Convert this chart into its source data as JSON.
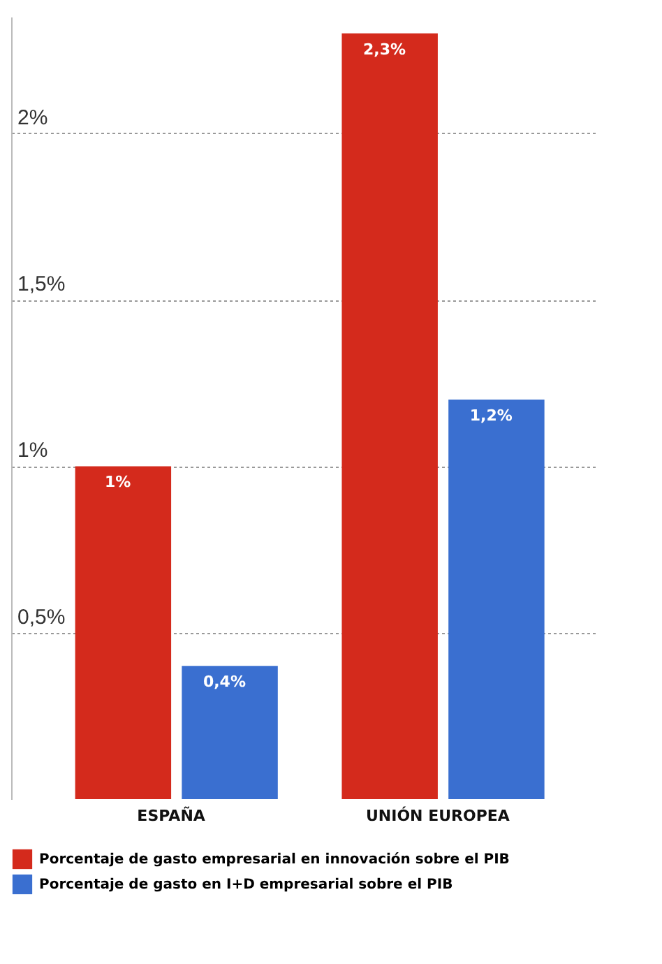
{
  "chart_data": {
    "type": "bar",
    "categories": [
      "ESPAÑA",
      "UNIÓN EUROPEA"
    ],
    "series": [
      {
        "name": "Porcentaje de gasto empresarial en innovación sobre el PIB",
        "color": "#d42a1c",
        "values": [
          1,
          2.3
        ],
        "value_labels": [
          "1%",
          "2,3%"
        ]
      },
      {
        "name": "Porcentaje de gasto en I+D empresarial sobre el PIB",
        "color": "#3a6fd0",
        "values": [
          0.4,
          1.2
        ],
        "value_labels": [
          "0,4%",
          "1,2%"
        ]
      }
    ],
    "ylim": [
      0,
      2.35
    ],
    "yticks": [
      {
        "value": 0.5,
        "label": "0,5%"
      },
      {
        "value": 1,
        "label": "1%"
      },
      {
        "value": 1.5,
        "label": "1,5%"
      },
      {
        "value": 2,
        "label": "2%"
      }
    ],
    "grid": "y",
    "legend": "bottom"
  }
}
